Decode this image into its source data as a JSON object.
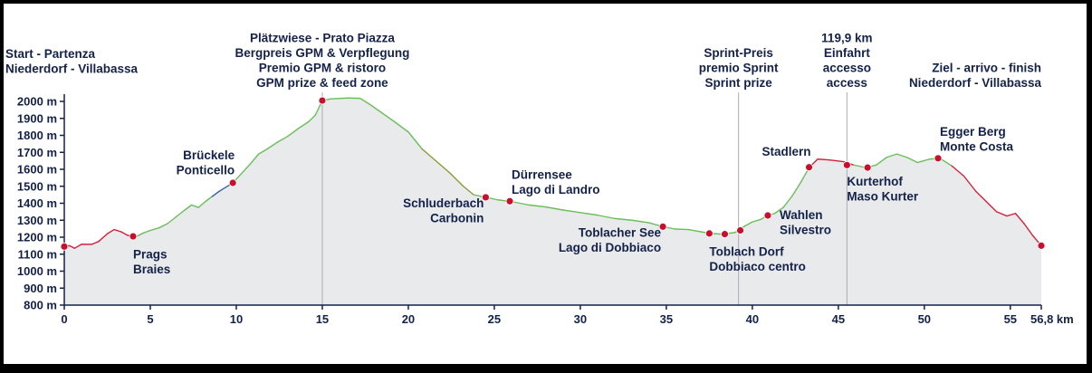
{
  "chart_data": {
    "type": "area",
    "unit_x": "km",
    "ylim": [
      800,
      2050
    ],
    "xlim": [
      0,
      56.8
    ],
    "y_ticks": [
      "800 m",
      "900 m",
      "1000 m",
      "1100 m",
      "1200 m",
      "1300 m",
      "1400 m",
      "1500 m",
      "1600 m",
      "1700 m",
      "1800 m",
      "1900 m",
      "2000 m"
    ],
    "y_tick_values": [
      800,
      900,
      1000,
      1100,
      1200,
      1300,
      1400,
      1500,
      1600,
      1700,
      1800,
      1900,
      2000
    ],
    "x_ticks": [
      "0",
      "5",
      "10",
      "15",
      "20",
      "25",
      "30",
      "35",
      "40",
      "45",
      "50",
      "55",
      "56,8 km"
    ],
    "x_tick_values": [
      0,
      5,
      10,
      15,
      20,
      25,
      30,
      35,
      40,
      45,
      50,
      55,
      56.8
    ],
    "grid": true,
    "colors": {
      "text": "#14224a",
      "fill": "#e9eaeb",
      "gridline": "#a9adb3",
      "marker": "#c8102e",
      "up_green": "#6bbf5a",
      "down_red": "#d4213d",
      "blue": "#3a64a8",
      "olive": "#8a9a34"
    },
    "profile": [
      [
        0,
        1145
      ],
      [
        0.3,
        1150
      ],
      [
        0.6,
        1135
      ],
      [
        1,
        1158
      ],
      [
        1.6,
        1158
      ],
      [
        2,
        1175
      ],
      [
        2.5,
        1220
      ],
      [
        2.9,
        1245
      ],
      [
        3.3,
        1232
      ],
      [
        3.7,
        1210
      ],
      [
        3.9,
        1208
      ],
      [
        4.2,
        1205
      ],
      [
        4.6,
        1225
      ],
      [
        5,
        1240
      ],
      [
        5.5,
        1255
      ],
      [
        6,
        1280
      ],
      [
        6.5,
        1320
      ],
      [
        7,
        1360
      ],
      [
        7.4,
        1390
      ],
      [
        7.8,
        1375
      ],
      [
        8.2,
        1410
      ],
      [
        8.6,
        1440
      ],
      [
        9,
        1470
      ],
      [
        9.4,
        1495
      ],
      [
        9.8,
        1520
      ],
      [
        10.3,
        1575
      ],
      [
        10.8,
        1630
      ],
      [
        11.3,
        1690
      ],
      [
        11.8,
        1720
      ],
      [
        12.4,
        1760
      ],
      [
        13,
        1795
      ],
      [
        13.6,
        1840
      ],
      [
        14.2,
        1880
      ],
      [
        14.6,
        1920
      ],
      [
        15,
        2005
      ],
      [
        15.5,
        2015
      ],
      [
        16.5,
        2020
      ],
      [
        17.2,
        2018
      ],
      [
        17.8,
        1980
      ],
      [
        18.5,
        1930
      ],
      [
        19.2,
        1880
      ],
      [
        20,
        1820
      ],
      [
        20.8,
        1720
      ],
      [
        21.6,
        1650
      ],
      [
        22.4,
        1580
      ],
      [
        23.2,
        1500
      ],
      [
        23.8,
        1450
      ],
      [
        24.5,
        1435
      ],
      [
        25.2,
        1420
      ],
      [
        26,
        1410
      ],
      [
        27,
        1390
      ],
      [
        28,
        1378
      ],
      [
        29,
        1360
      ],
      [
        30,
        1345
      ],
      [
        31,
        1330
      ],
      [
        32,
        1310
      ],
      [
        33,
        1300
      ],
      [
        34,
        1285
      ],
      [
        34.8,
        1262
      ],
      [
        35.5,
        1248
      ],
      [
        36.3,
        1245
      ],
      [
        37,
        1232
      ],
      [
        37.6,
        1222
      ],
      [
        38.3,
        1218
      ],
      [
        39,
        1228
      ],
      [
        39.5,
        1262
      ],
      [
        40,
        1290
      ],
      [
        40.5,
        1305
      ],
      [
        40.9,
        1328
      ],
      [
        41.3,
        1340
      ],
      [
        41.8,
        1375
      ],
      [
        42.3,
        1440
      ],
      [
        42.8,
        1520
      ],
      [
        43.3,
        1610
      ],
      [
        43.8,
        1660
      ],
      [
        44.5,
        1655
      ],
      [
        45.3,
        1645
      ],
      [
        45.9,
        1625
      ],
      [
        46.6,
        1610
      ],
      [
        47.2,
        1625
      ],
      [
        47.8,
        1670
      ],
      [
        48.4,
        1690
      ],
      [
        49,
        1670
      ],
      [
        49.6,
        1640
      ],
      [
        50.3,
        1660
      ],
      [
        50.9,
        1665
      ],
      [
        51.6,
        1620
      ],
      [
        52.3,
        1560
      ],
      [
        53,
        1470
      ],
      [
        53.6,
        1410
      ],
      [
        54.2,
        1350
      ],
      [
        54.8,
        1325
      ],
      [
        55.3,
        1340
      ],
      [
        55.8,
        1280
      ],
      [
        56.3,
        1210
      ],
      [
        56.8,
        1150
      ]
    ],
    "markers": [
      {
        "km": 0,
        "alt": 1145
      },
      {
        "km": 4.0,
        "alt": 1205
      },
      {
        "km": 9.8,
        "alt": 1520
      },
      {
        "km": 15.0,
        "alt": 2005
      },
      {
        "km": 24.5,
        "alt": 1435
      },
      {
        "km": 25.9,
        "alt": 1412
      },
      {
        "km": 34.8,
        "alt": 1262
      },
      {
        "km": 37.5,
        "alt": 1222
      },
      {
        "km": 38.4,
        "alt": 1218
      },
      {
        "km": 39.3,
        "alt": 1240
      },
      {
        "km": 40.9,
        "alt": 1328
      },
      {
        "km": 43.3,
        "alt": 1612
      },
      {
        "km": 45.5,
        "alt": 1625
      },
      {
        "km": 46.7,
        "alt": 1610
      },
      {
        "km": 50.8,
        "alt": 1665
      },
      {
        "km": 56.8,
        "alt": 1150
      }
    ],
    "verticals": [
      15.0,
      39.2,
      45.5
    ],
    "annotations": [
      {
        "km": 0,
        "lines": [
          "Start - Partenza",
          "Niederdorf - Villabassa"
        ],
        "pos": "top-left"
      },
      {
        "km": 15.0,
        "lines": [
          "Plätzwiese - Prato Piazza",
          "Bergpreis GPM & Verpflegung",
          "Premio GPM & ristoro",
          "GPM prize & feed zone"
        ],
        "pos": "top"
      },
      {
        "km": 39.2,
        "lines": [
          "Sprint-Preis",
          "premio Sprint",
          "Sprint prize"
        ],
        "pos": "top"
      },
      {
        "km": 45.5,
        "lines": [
          "119,9 km",
          "Einfahrt",
          "accesso",
          "access"
        ],
        "pos": "top"
      },
      {
        "km": 56.8,
        "lines": [
          "Ziel - arrivo - finish",
          "Niederdorf - Villabassa"
        ],
        "pos": "top-right"
      },
      {
        "km": 4.0,
        "lines": [
          "Prags",
          "Braies"
        ],
        "pos": "below-right"
      },
      {
        "km": 9.8,
        "lines": [
          "Brückele",
          "Ponticello"
        ],
        "pos": "above-left"
      },
      {
        "km": 24.5,
        "lines": [
          "Schluderbach",
          "Carbonin"
        ],
        "pos": "below-left"
      },
      {
        "km": 25.9,
        "lines": [
          "Dürrensee",
          "Lago di Landro"
        ],
        "pos": "above-right"
      },
      {
        "km": 34.8,
        "lines": [
          "Toblacher See",
          "Lago di Dobbiaco"
        ],
        "pos": "below-left"
      },
      {
        "km": 37.5,
        "lines": [
          "Toblach Dorf",
          "Dobbiaco centro"
        ],
        "pos": "below-right"
      },
      {
        "km": 40.9,
        "lines": [
          "Wahlen",
          "Silvestro"
        ],
        "pos": "right"
      },
      {
        "km": 43.3,
        "lines": [
          "Stadlern"
        ],
        "pos": "above-left"
      },
      {
        "km": 45.5,
        "lines": [
          "Kurterhof",
          "Maso Kurter"
        ],
        "pos": "below-right"
      },
      {
        "km": 50.8,
        "lines": [
          "Egger Berg",
          "Monte Costa"
        ],
        "pos": "above-right"
      }
    ]
  }
}
